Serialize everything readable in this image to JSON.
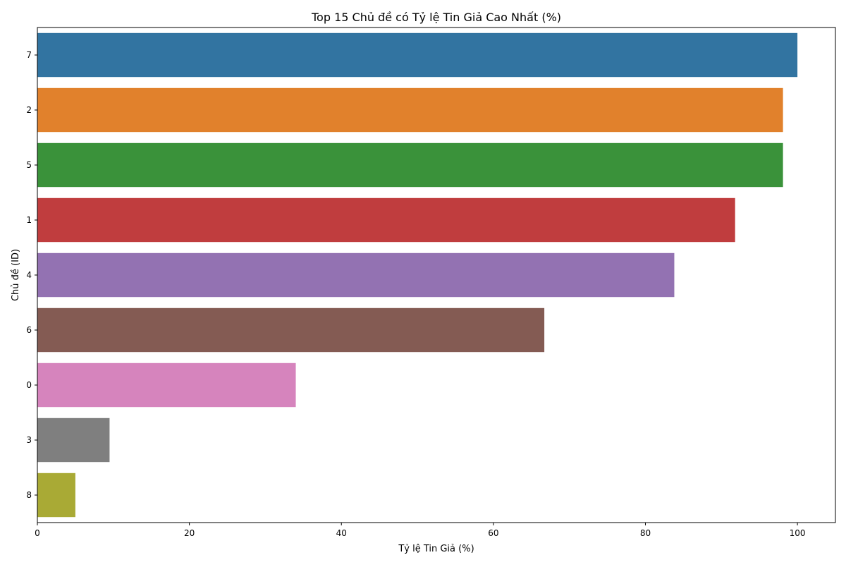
{
  "chart_data": {
    "type": "bar",
    "orientation": "horizontal",
    "title": "Top 15 Chủ đề có Tỷ lệ Tin Giả Cao Nhất (%)",
    "xlabel": "Tỷ lệ Tin Giả (%)",
    "ylabel": "Chủ đề (ID)",
    "categories": [
      "7",
      "2",
      "5",
      "1",
      "4",
      "6",
      "0",
      "3",
      "8"
    ],
    "values": [
      100.0,
      98.1,
      98.1,
      91.8,
      83.8,
      66.7,
      34.0,
      9.5,
      5.0
    ],
    "colors": [
      "#3274a1",
      "#e1812c",
      "#3a923a",
      "#c03d3e",
      "#9372b2",
      "#845b53",
      "#d684bd",
      "#7f7f7f",
      "#a9aa35"
    ],
    "xlim": [
      0,
      105
    ],
    "xticks": [
      0,
      20,
      40,
      60,
      80,
      100
    ],
    "grid": false,
    "legend": "none"
  }
}
